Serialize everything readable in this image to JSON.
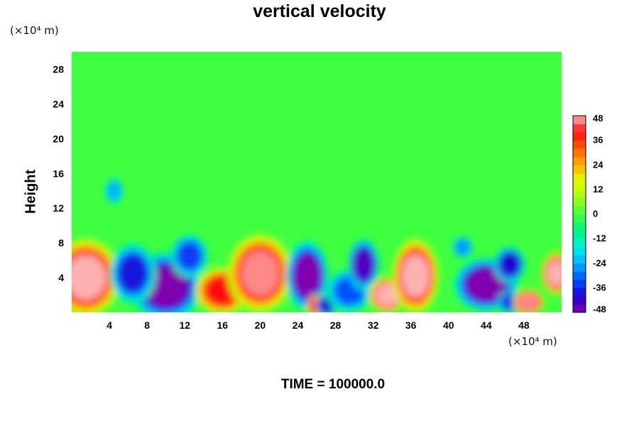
{
  "chart_data": {
    "type": "heatmap",
    "title": "vertical velocity",
    "ylabel": "Height",
    "xlabel": "",
    "x_unit": "(×10⁴ m)",
    "y_unit": "(×10⁴ m)",
    "footer": "TIME = 100000.0",
    "xlim": [
      0,
      52
    ],
    "ylim": [
      0,
      30
    ],
    "x_ticks": [
      4,
      8,
      12,
      16,
      20,
      24,
      28,
      32,
      36,
      40,
      44,
      48
    ],
    "y_ticks": [
      4,
      8,
      12,
      16,
      20,
      24,
      28
    ],
    "colorbar": {
      "min": -48,
      "max": 48,
      "step": 4,
      "tick_labels": [
        48,
        36,
        24,
        12,
        0,
        -12,
        -24,
        -36,
        -48
      ]
    },
    "background_value": 0,
    "cells": [
      {
        "x": 1.5,
        "y": 4.0,
        "rx": 3.2,
        "ry": 4.0,
        "value": 48
      },
      {
        "x": 10.0,
        "y": 3.0,
        "rx": 3.5,
        "ry": 3.5,
        "value": -48
      },
      {
        "x": 6.5,
        "y": 4.5,
        "rx": 2.0,
        "ry": 3.0,
        "value": -38
      },
      {
        "x": 12.5,
        "y": 6.5,
        "rx": 1.5,
        "ry": 2.0,
        "value": -34
      },
      {
        "x": 16.0,
        "y": 2.5,
        "rx": 2.5,
        "ry": 2.2,
        "value": 40
      },
      {
        "x": 20.0,
        "y": 4.5,
        "rx": 3.0,
        "ry": 4.0,
        "value": 46
      },
      {
        "x": 25.0,
        "y": 4.2,
        "rx": 1.8,
        "ry": 3.6,
        "value": -48
      },
      {
        "x": 26.0,
        "y": 0.8,
        "rx": 0.6,
        "ry": 0.8,
        "value": 40
      },
      {
        "x": 27.0,
        "y": 0.8,
        "rx": 0.6,
        "ry": 0.8,
        "value": -40
      },
      {
        "x": 29.5,
        "y": 2.5,
        "rx": 2.0,
        "ry": 2.0,
        "value": -32
      },
      {
        "x": 31.0,
        "y": 5.5,
        "rx": 1.2,
        "ry": 2.5,
        "value": -44
      },
      {
        "x": 33.5,
        "y": 2.0,
        "rx": 1.5,
        "ry": 1.6,
        "value": 48
      },
      {
        "x": 36.5,
        "y": 4.2,
        "rx": 2.0,
        "ry": 3.8,
        "value": 48
      },
      {
        "x": 44.0,
        "y": 3.2,
        "rx": 3.0,
        "ry": 2.6,
        "value": -48
      },
      {
        "x": 46.5,
        "y": 5.5,
        "rx": 1.2,
        "ry": 1.6,
        "value": -40
      },
      {
        "x": 46.5,
        "y": 1.2,
        "rx": 0.8,
        "ry": 0.8,
        "value": -36
      },
      {
        "x": 48.5,
        "y": 1.2,
        "rx": 1.2,
        "ry": 1.0,
        "value": 46
      },
      {
        "x": 51.5,
        "y": 4.5,
        "rx": 1.2,
        "ry": 2.0,
        "value": 48
      },
      {
        "x": 4.5,
        "y": 14.0,
        "rx": 0.5,
        "ry": 1.0,
        "value": -24
      },
      {
        "x": 41.5,
        "y": 7.5,
        "rx": 0.6,
        "ry": 0.8,
        "value": -26
      }
    ]
  }
}
